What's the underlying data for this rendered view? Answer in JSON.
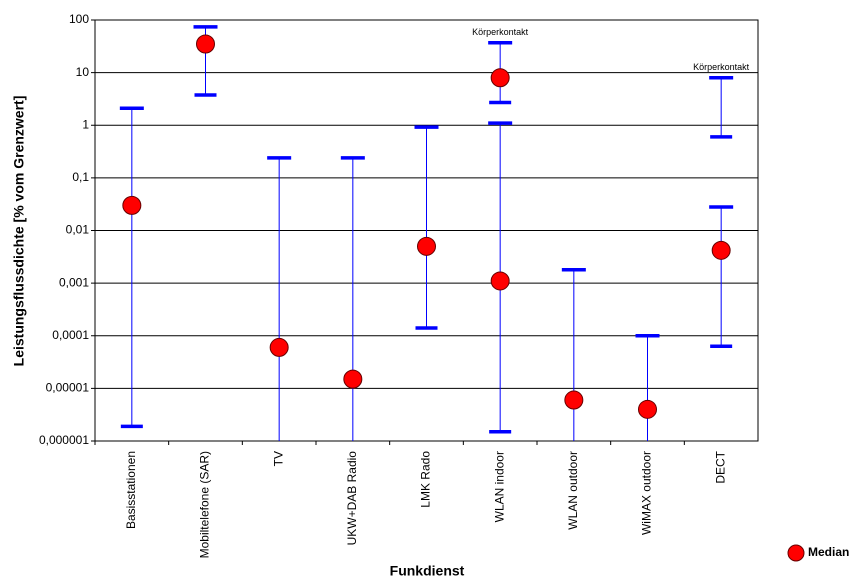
{
  "chart_data": {
    "type": "range",
    "x_label": "Funkdienst",
    "y_label": "Leistungsflussdichte [% vom Grenzwert]",
    "categories": [
      "Basisstationen",
      "Mobiltelefone (SAR)",
      "TV",
      "UKW+DAB Radio",
      "LMK Rado",
      "WLAN indoor",
      "WLAN outdoor",
      "WiMAX outdoor",
      "DECT"
    ],
    "log_y": true,
    "ylim": [
      1e-06,
      100
    ],
    "yticks": [
      {
        "value": 1e-06,
        "label": "0,000001"
      },
      {
        "value": 1e-05,
        "label": "0,00001"
      },
      {
        "value": 0.0001,
        "label": "0,0001"
      },
      {
        "value": 0.001,
        "label": "0,001"
      },
      {
        "value": 0.01,
        "label": "0,01"
      },
      {
        "value": 0.1,
        "label": "0,1"
      },
      1,
      10,
      100
    ],
    "grid": true,
    "legend_position": "bottom-right",
    "series": [
      {
        "name": "Median",
        "color": "#ff0000",
        "range_color": "#0000ff",
        "values": [
          0.03,
          35,
          6e-05,
          1.5e-05,
          0.005,
          0.0011,
          6e-06,
          4e-06,
          0.0042
        ],
        "low": [
          1.9e-06,
          3.75,
          null,
          null,
          0.00014,
          1.5e-06,
          null,
          null,
          6.3e-05
        ],
        "high": [
          2.1,
          74,
          0.24,
          0.24,
          0.92,
          1.1,
          0.0018,
          0.0001,
          0.028
        ]
      },
      {
        "color": "#ff0000",
        "range_color": "#0000ff",
        "values": [
          null,
          null,
          null,
          null,
          null,
          8,
          null,
          null,
          null
        ],
        "low": [
          null,
          null,
          null,
          null,
          null,
          2.7,
          null,
          null,
          0.6
        ],
        "high": [
          null,
          null,
          null,
          null,
          null,
          37,
          null,
          null,
          8
        ],
        "labels": [
          null,
          null,
          null,
          null,
          null,
          "Körperkontakt",
          null,
          null,
          "Körperkontakt"
        ]
      }
    ]
  }
}
